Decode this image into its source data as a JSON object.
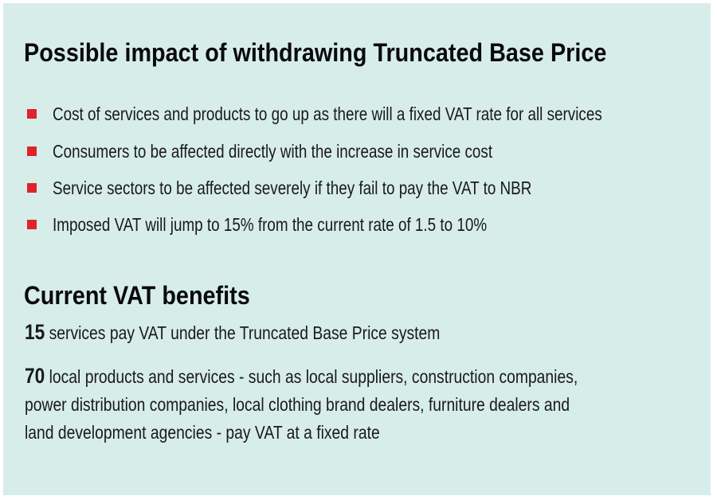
{
  "section1": {
    "title": "Possible impact of withdrawing Truncated Base Price",
    "bullets": [
      "Cost of services and products to go up as there will a fixed VAT rate for all services",
      "Consumers to be affected directly with the increase in service cost",
      "Service sectors to be affected severely if they fail to pay the VAT to NBR",
      "Imposed VAT will jump to 15% from the current rate of 1.5 to 10%"
    ],
    "bullet_color": "#e0232b"
  },
  "section2": {
    "title": "Current VAT benefits",
    "items": [
      {
        "number": "15",
        "lines": [
          "services pay VAT under the Truncated Base Price system"
        ]
      },
      {
        "number": "70",
        "lines": [
          "local products and services - such as local suppliers, construction companies,",
          "power distribution companies, local clothing brand dealers, furniture dealers and",
          "land development agencies - pay VAT at a fixed rate"
        ]
      }
    ]
  },
  "background_color": "#d7ede9"
}
